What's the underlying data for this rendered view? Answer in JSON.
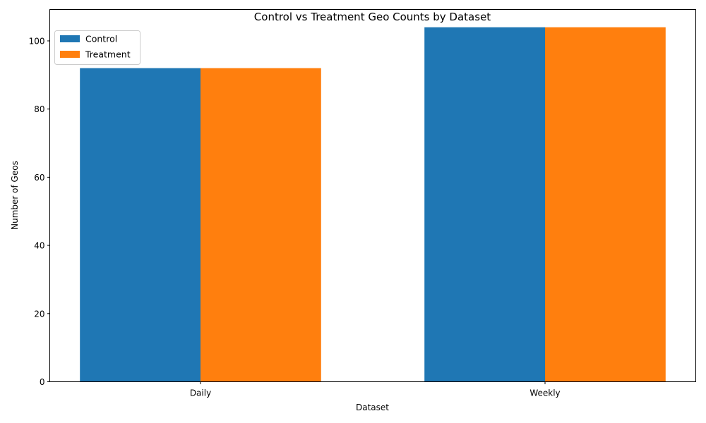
{
  "chart_data": {
    "type": "bar",
    "title": "Control vs Treatment Geo Counts by Dataset",
    "xlabel": "Dataset",
    "ylabel": "Number of Geos",
    "categories": [
      "Daily",
      "Weekly"
    ],
    "series": [
      {
        "name": "Control",
        "values": [
          92,
          104
        ],
        "color": "#1f77b4"
      },
      {
        "name": "Treatment",
        "values": [
          92,
          104
        ],
        "color": "#ff7f0e"
      }
    ],
    "ylim": [
      0,
      109.2
    ],
    "yticks": [
      0,
      20,
      40,
      60,
      80,
      100
    ],
    "grid": false,
    "legend_position": "top-left"
  }
}
